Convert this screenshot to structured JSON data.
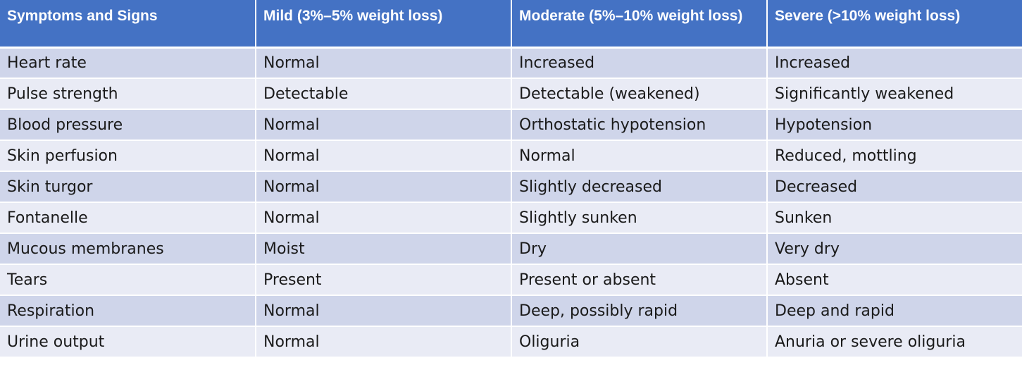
{
  "table": {
    "headers": [
      "Symptoms and Signs",
      "Mild (3%–5% weight loss)",
      "Moderate (5%–10% weight loss)",
      "Severe (>10% weight loss)"
    ],
    "rows": [
      [
        "Heart rate",
        "Normal",
        "Increased",
        "Increased"
      ],
      [
        "Pulse strength",
        "Detectable",
        "Detectable (weakened)",
        "Significantly weakened"
      ],
      [
        "Blood pressure",
        "Normal",
        "Orthostatic hypotension",
        "Hypotension"
      ],
      [
        "Skin perfusion",
        "Normal",
        "Normal",
        "Reduced, mottling"
      ],
      [
        "Skin turgor",
        "Normal",
        "Slightly decreased",
        "Decreased"
      ],
      [
        "Fontanelle",
        "Normal",
        "Slightly sunken",
        "Sunken"
      ],
      [
        "Mucous membranes",
        "Moist",
        "Dry",
        "Very dry"
      ],
      [
        "Tears",
        "Present",
        "Present or absent",
        "Absent"
      ],
      [
        "Respiration",
        "Normal",
        "Deep, possibly rapid",
        "Deep and rapid"
      ],
      [
        "Urine output",
        "Normal",
        "Oliguria",
        "Anuria or severe oliguria"
      ]
    ]
  },
  "colors": {
    "header_bg": "#4472c4",
    "header_text": "#ffffff",
    "row_odd_bg": "#cfd5ea",
    "row_even_bg": "#e9ebf5"
  }
}
